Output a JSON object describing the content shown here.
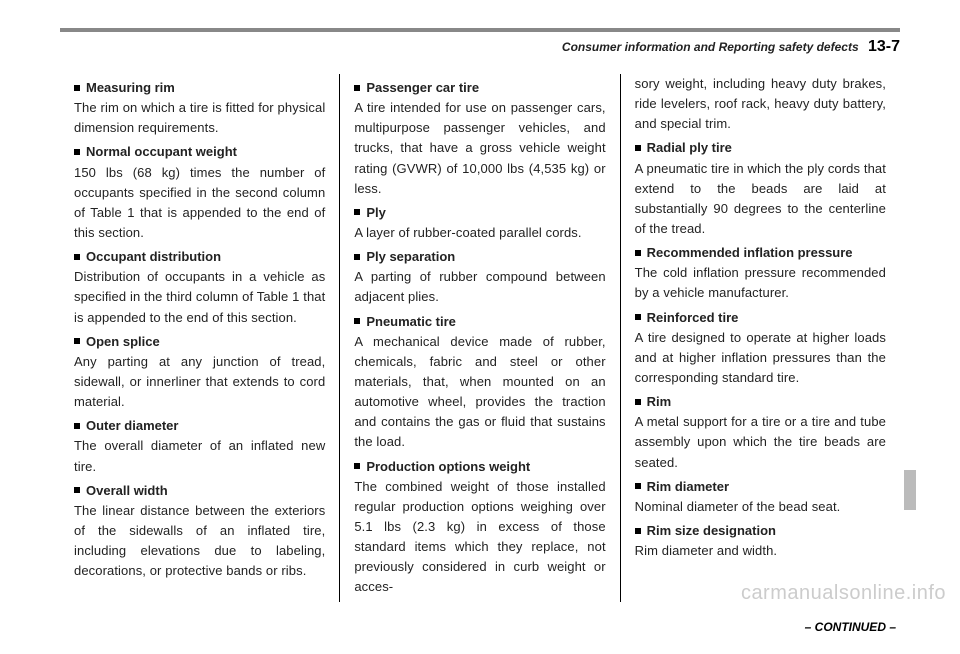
{
  "header": {
    "section": "Consumer information and Reporting safety defects",
    "page_number": "13-7"
  },
  "columns": [
    [
      {
        "term": "Measuring rim",
        "def": "The rim on which a tire is fitted for physical dimension requirements."
      },
      {
        "term": "Normal occupant weight",
        "def": "150 lbs (68 kg) times the number of occupants specified in the second column of Table 1 that is appended to the end of this section."
      },
      {
        "term": "Occupant distribution",
        "def": "Distribution of occupants in a vehicle as specified in the third column of Table 1 that is appended to the end of this section."
      },
      {
        "term": "Open splice",
        "def": "Any parting at any junction of tread, sidewall, or innerliner that extends to cord material."
      },
      {
        "term": "Outer diameter",
        "def": "The overall diameter of an inflated new tire."
      },
      {
        "term": "Overall width",
        "def": "The linear distance between the exteriors of the sidewalls of an inflated tire, including elevations due to labeling, decorations, or protective bands or ribs."
      }
    ],
    [
      {
        "term": "Passenger car tire",
        "def": "A tire intended for use on passenger cars, multipurpose passenger vehicles, and trucks, that have a gross vehicle weight rating (GVWR) of 10,000 lbs (4,535 kg) or less."
      },
      {
        "term": "Ply",
        "def": "A layer of rubber-coated parallel cords."
      },
      {
        "term": "Ply separation",
        "def": "A parting of rubber compound between adjacent plies."
      },
      {
        "term": "Pneumatic tire",
        "def": "A mechanical device made of rubber, chemicals, fabric and steel or other materials, that, when mounted on an automotive wheel, provides the traction and contains the gas or fluid that sustains the load."
      },
      {
        "term": "Production options weight",
        "def": "The combined weight of those installed regular production options weighing over 5.1 lbs (2.3 kg) in excess of those standard items which they replace, not previously considered in curb weight or acces-"
      }
    ],
    [
      {
        "def": "sory weight, including heavy duty brakes, ride levelers, roof rack, heavy duty battery, and special trim."
      },
      {
        "term": "Radial ply tire",
        "def": "A pneumatic tire in which the ply cords that extend to the beads are laid at substantially 90 degrees to the centerline of the tread."
      },
      {
        "term": "Recommended inflation pressure",
        "def": "The cold inflation pressure recommended by a vehicle manufacturer."
      },
      {
        "term": "Reinforced tire",
        "def": "A tire designed to operate at higher loads and at higher inflation pressures than the corresponding standard tire."
      },
      {
        "term": "Rim",
        "def": "A metal support for a tire or a tire and tube assembly upon which the tire beads are seated."
      },
      {
        "term": "Rim diameter",
        "def": "Nominal diameter of the bead seat."
      },
      {
        "term": "Rim size designation",
        "def": "Rim diameter and width."
      }
    ]
  ],
  "continued_label": "– CONTINUED –",
  "watermark": "carmanualsonline.info"
}
